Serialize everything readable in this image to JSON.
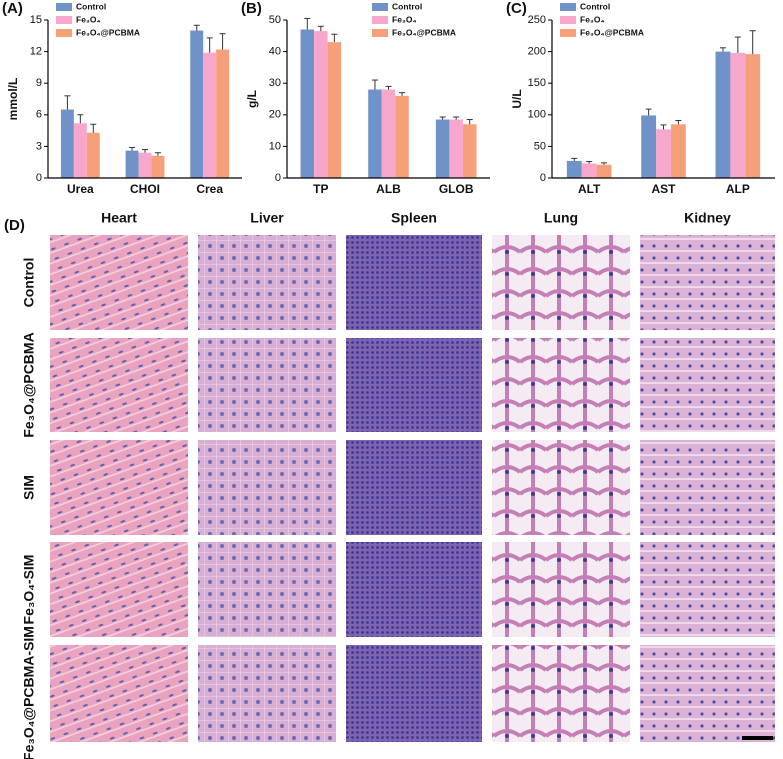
{
  "chart_data": [
    {
      "type": "bar",
      "panel": "(A)",
      "ylabel": "mmol/L",
      "categories": [
        "Urea",
        "CHOI",
        "Crea"
      ],
      "series": [
        {
          "name": "Control",
          "color": "#6f93c8",
          "values": [
            6.5,
            2.6,
            14.0
          ],
          "errors": [
            1.3,
            0.3,
            0.5
          ]
        },
        {
          "name": "Fe₃O₄",
          "color": "#f7a6cc",
          "values": [
            5.2,
            2.4,
            11.9
          ],
          "errors": [
            0.8,
            0.3,
            1.4
          ]
        },
        {
          "name": "Fe₃O₄@PCBMA",
          "color": "#f6a07a",
          "values": [
            4.3,
            2.1,
            12.2
          ],
          "errors": [
            0.8,
            0.3,
            1.5
          ]
        }
      ],
      "ylim": [
        0,
        15
      ],
      "yticks": [
        0,
        3,
        6,
        9,
        12,
        15
      ],
      "legend": "upper left"
    },
    {
      "type": "bar",
      "panel": "(B)",
      "ylabel": "g/L",
      "categories": [
        "TP",
        "ALB",
        "GLOB"
      ],
      "series": [
        {
          "name": "Control",
          "color": "#6f93c8",
          "values": [
            47,
            28,
            18.5
          ],
          "errors": [
            3.5,
            3,
            0.8
          ]
        },
        {
          "name": "Fe₃O₄",
          "color": "#f7a6cc",
          "values": [
            46.5,
            28,
            18.5
          ],
          "errors": [
            1.5,
            1,
            0.8
          ]
        },
        {
          "name": "Fe₃O₄@PCBMA",
          "color": "#f6a07a",
          "values": [
            43,
            26,
            17
          ],
          "errors": [
            2.5,
            1,
            1.5
          ]
        }
      ],
      "ylim": [
        0,
        50
      ],
      "yticks": [
        0,
        10,
        20,
        30,
        40,
        50
      ],
      "legend": "upper right"
    },
    {
      "type": "bar",
      "panel": "(C)",
      "ylabel": "U/L",
      "categories": [
        "ALT",
        "AST",
        "ALP"
      ],
      "series": [
        {
          "name": "Control",
          "color": "#6f93c8",
          "values": [
            27,
            99,
            200
          ],
          "errors": [
            4,
            10,
            6
          ]
        },
        {
          "name": "Fe₃O₄",
          "color": "#f7a6cc",
          "values": [
            23,
            77,
            198
          ],
          "errors": [
            3,
            7,
            25
          ]
        },
        {
          "name": "Fe₃O₄@PCBMA",
          "color": "#f6a07a",
          "values": [
            21,
            85,
            196
          ],
          "errors": [
            3,
            6,
            37
          ]
        }
      ],
      "ylim": [
        0,
        250
      ],
      "yticks": [
        0,
        50,
        100,
        150,
        200,
        250
      ],
      "legend": "upper left"
    }
  ],
  "panel_d": {
    "label": "(D)",
    "columns": [
      "Heart",
      "Liver",
      "Spleen",
      "Lung",
      "Kidney"
    ],
    "rows": [
      "Control",
      "Fe₃O₄@PCBMA",
      "SIM",
      "Fe₃O₄-SIM",
      "Fe₃O₄@PCBMA-SIM"
    ]
  }
}
